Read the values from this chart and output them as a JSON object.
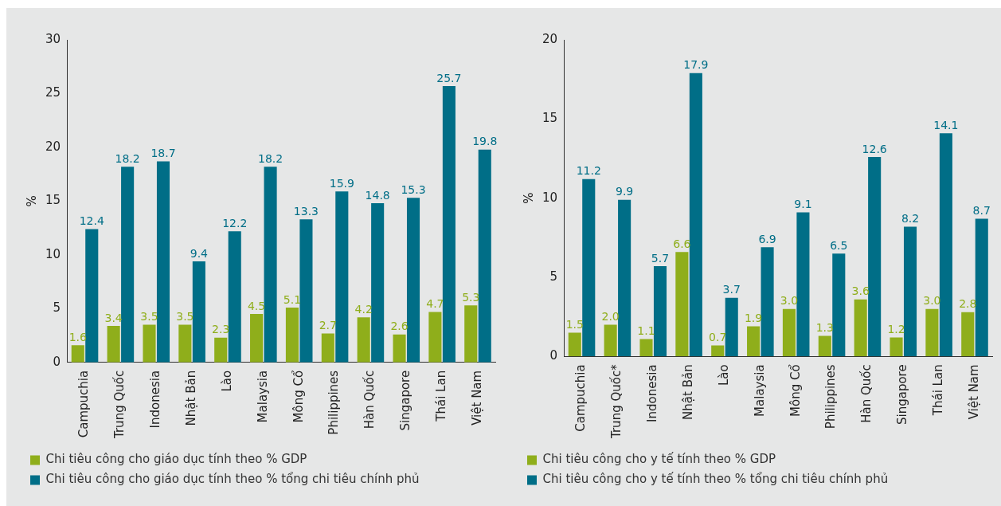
{
  "chart_data": [
    {
      "type": "bar",
      "ylabel": "%",
      "categories": [
        "Campuchia",
        "Trung Quốc",
        "Indonesia",
        "Nhật Bản",
        "Lào",
        "Malaysia",
        "Mông Cổ",
        "Philippines",
        "Hàn Quốc",
        "Singapore",
        "Thái Lan",
        "Việt Nam"
      ],
      "ylim": [
        0,
        30
      ],
      "yticks": [
        0,
        5,
        10,
        15,
        20,
        25,
        30
      ],
      "grid": false,
      "legend": "bottom",
      "series": [
        {
          "name": "Chi tiêu công cho giáo dục tính theo % GDP",
          "color": "#8fae1b",
          "values": [
            1.6,
            3.4,
            3.5,
            3.5,
            2.3,
            4.5,
            5.1,
            2.7,
            4.2,
            2.6,
            4.7,
            5.3
          ],
          "value_labels": [
            "1.6",
            "3.4",
            "3.5",
            "3.5",
            "2.3",
            "4.5",
            "5.1",
            "2.7",
            "4.2",
            "2.6",
            "4.7",
            "5.3"
          ]
        },
        {
          "name": "Chi tiêu công cho giáo dục tính theo % tổng chi tiêu chính phủ",
          "color": "#006e87",
          "values": [
            12.4,
            18.2,
            18.7,
            9.4,
            12.2,
            18.2,
            13.3,
            15.9,
            14.8,
            15.3,
            25.7,
            19.8
          ],
          "value_labels": [
            "12.4",
            "18.2",
            "18.7",
            "9.4",
            "12.2",
            "18.2",
            "13.3",
            "15.9",
            "14.8",
            "15.3",
            "25.7",
            "19.8"
          ]
        }
      ]
    },
    {
      "type": "bar",
      "ylabel": "%",
      "categories": [
        "Campuchia",
        "Trung Quốc*",
        "Indonesia",
        "Nhật Bản",
        "Lào",
        "Malaysia",
        "Mông Cổ",
        "Philippines",
        "Hàn Quốc",
        "Singapore",
        "Thái Lan",
        "Việt Nam"
      ],
      "ylim": [
        0,
        20
      ],
      "yticks": [
        0,
        5,
        10,
        15,
        20
      ],
      "grid": false,
      "legend": "bottom",
      "series": [
        {
          "name": "Chi tiêu công cho y tế tính theo % GDP",
          "color": "#8fae1b",
          "values": [
            1.5,
            2.0,
            1.1,
            6.6,
            0.7,
            1.9,
            3.0,
            1.3,
            3.6,
            1.2,
            3.0,
            2.8
          ],
          "value_labels": [
            "1.5",
            "2.0",
            "1.1",
            "6.6",
            "0.7",
            "1.9",
            "3.0",
            "1.3",
            "3.6",
            "1.2",
            "3.0",
            "2.8"
          ]
        },
        {
          "name": "Chi tiêu công cho y tế tính theo % tổng chi tiêu chính phủ",
          "color": "#006e87",
          "values": [
            11.2,
            9.9,
            5.7,
            17.9,
            3.7,
            6.9,
            9.1,
            6.5,
            12.6,
            8.2,
            14.1,
            8.7
          ],
          "value_labels": [
            "11.2",
            "9.9",
            "5.7",
            "17.9",
            "3.7",
            "6.9",
            "9.1",
            "6.5",
            "12.6",
            "8.2",
            "14.1",
            "8.7"
          ]
        }
      ]
    }
  ]
}
